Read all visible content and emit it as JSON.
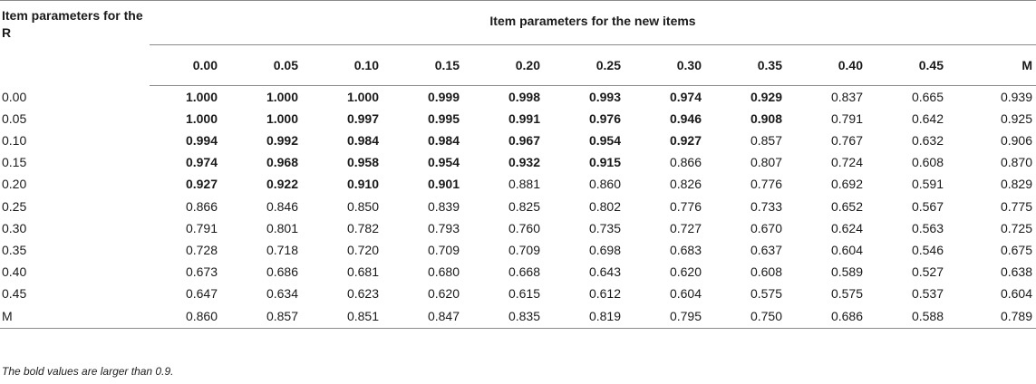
{
  "table": {
    "row_header": "Item parameters for the R",
    "group_header": "Item parameters for the new items",
    "columns": [
      "0.00",
      "0.05",
      "0.10",
      "0.15",
      "0.20",
      "0.25",
      "0.30",
      "0.35",
      "0.40",
      "0.45",
      "M"
    ],
    "rows": [
      {
        "label": "0.00",
        "values": [
          "1.000",
          "1.000",
          "1.000",
          "0.999",
          "0.998",
          "0.993",
          "0.974",
          "0.929",
          "0.837",
          "0.665",
          "0.939"
        ],
        "bold_count": 8
      },
      {
        "label": "0.05",
        "values": [
          "1.000",
          "1.000",
          "0.997",
          "0.995",
          "0.991",
          "0.976",
          "0.946",
          "0.908",
          "0.791",
          "0.642",
          "0.925"
        ],
        "bold_count": 8
      },
      {
        "label": "0.10",
        "values": [
          "0.994",
          "0.992",
          "0.984",
          "0.984",
          "0.967",
          "0.954",
          "0.927",
          "0.857",
          "0.767",
          "0.632",
          "0.906"
        ],
        "bold_count": 7
      },
      {
        "label": "0.15",
        "values": [
          "0.974",
          "0.968",
          "0.958",
          "0.954",
          "0.932",
          "0.915",
          "0.866",
          "0.807",
          "0.724",
          "0.608",
          "0.870"
        ],
        "bold_count": 6
      },
      {
        "label": "0.20",
        "values": [
          "0.927",
          "0.922",
          "0.910",
          "0.901",
          "0.881",
          "0.860",
          "0.826",
          "0.776",
          "0.692",
          "0.591",
          "0.829"
        ],
        "bold_count": 4
      },
      {
        "label": "0.25",
        "values": [
          "0.866",
          "0.846",
          "0.850",
          "0.839",
          "0.825",
          "0.802",
          "0.776",
          "0.733",
          "0.652",
          "0.567",
          "0.775"
        ],
        "bold_count": 0
      },
      {
        "label": "0.30",
        "values": [
          "0.791",
          "0.801",
          "0.782",
          "0.793",
          "0.760",
          "0.735",
          "0.727",
          "0.670",
          "0.624",
          "0.563",
          "0.725"
        ],
        "bold_count": 0
      },
      {
        "label": "0.35",
        "values": [
          "0.728",
          "0.718",
          "0.720",
          "0.709",
          "0.709",
          "0.698",
          "0.683",
          "0.637",
          "0.604",
          "0.546",
          "0.675"
        ],
        "bold_count": 0
      },
      {
        "label": "0.40",
        "values": [
          "0.673",
          "0.686",
          "0.681",
          "0.680",
          "0.668",
          "0.643",
          "0.620",
          "0.608",
          "0.589",
          "0.527",
          "0.638"
        ],
        "bold_count": 0
      },
      {
        "label": "0.45",
        "values": [
          "0.647",
          "0.634",
          "0.623",
          "0.620",
          "0.615",
          "0.612",
          "0.604",
          "0.575",
          "0.575",
          "0.537",
          "0.604"
        ],
        "bold_count": 0
      },
      {
        "label": "M",
        "values": [
          "0.860",
          "0.857",
          "0.851",
          "0.847",
          "0.835",
          "0.819",
          "0.795",
          "0.750",
          "0.686",
          "0.588",
          "0.789"
        ],
        "bold_count": 0
      }
    ]
  },
  "footnote": "The bold values are larger than 0.9."
}
